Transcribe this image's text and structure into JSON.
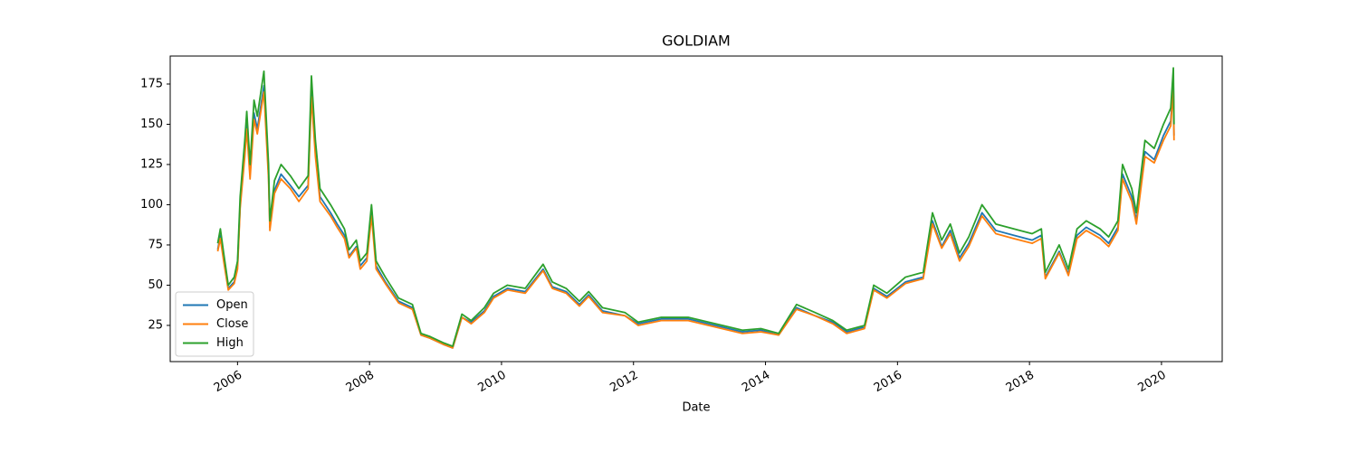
{
  "chart_data": {
    "type": "line",
    "title": "GOLDIAM",
    "x_label": "Date",
    "x": [
      2005.7,
      2005.74,
      2005.79,
      2005.86,
      2005.95,
      2006.0,
      2006.04,
      2006.11,
      2006.14,
      2006.19,
      2006.25,
      2006.3,
      2006.4,
      2006.47,
      2006.49,
      2006.56,
      2006.66,
      2006.8,
      2006.93,
      2007.07,
      2007.12,
      2007.18,
      2007.25,
      2007.41,
      2007.51,
      2007.62,
      2007.69,
      2007.8,
      2007.86,
      2007.96,
      2008.03,
      2008.1,
      2008.24,
      2008.44,
      2008.65,
      2008.78,
      2008.92,
      2009.13,
      2009.26,
      2009.4,
      2009.54,
      2009.74,
      2009.88,
      2010.09,
      2010.36,
      2010.63,
      2010.77,
      2010.98,
      2011.18,
      2011.32,
      2011.53,
      2011.87,
      2012.07,
      2012.42,
      2012.83,
      2013.24,
      2013.65,
      2013.93,
      2014.2,
      2014.47,
      2014.75,
      2015.02,
      2015.23,
      2015.5,
      2015.64,
      2015.84,
      2016.12,
      2016.39,
      2016.53,
      2016.67,
      2016.8,
      2016.94,
      2017.08,
      2017.28,
      2017.49,
      2017.76,
      2018.04,
      2018.18,
      2018.24,
      2018.45,
      2018.59,
      2018.72,
      2018.86,
      2019.07,
      2019.2,
      2019.34,
      2019.41,
      2019.55,
      2019.62,
      2019.75,
      2019.89,
      2020.03,
      2020.14,
      2020.18,
      2020.19
    ],
    "series": [
      {
        "name": "Open",
        "color": "#1f77b4",
        "values": [
          72,
          81,
          67,
          48,
          52,
          62,
          100,
          133,
          150,
          119,
          157,
          147,
          174,
          119,
          86,
          109,
          119,
          112,
          105,
          112,
          171,
          133,
          105,
          95,
          88,
          81,
          68,
          74,
          62,
          67,
          95,
          62,
          52,
          40,
          36,
          19,
          17,
          13,
          11,
          30,
          27,
          34,
          43,
          48,
          46,
          60,
          49,
          46,
          38,
          44,
          34,
          31,
          26,
          29,
          29,
          25,
          21,
          22,
          19,
          36,
          31,
          27,
          21,
          24,
          48,
          43,
          52,
          55,
          90,
          74,
          84,
          67,
          76,
          95,
          84,
          81,
          78,
          81,
          55,
          71,
          57,
          81,
          86,
          81,
          76,
          86,
          119,
          105,
          90,
          133,
          128,
          143,
          152,
          176,
          143
        ]
      },
      {
        "name": "Close",
        "color": "#ff7f0e",
        "values": [
          71,
          79,
          65,
          47,
          51,
          60,
          98,
          130,
          147,
          116,
          153,
          144,
          170,
          116,
          84,
          107,
          116,
          110,
          102,
          110,
          167,
          130,
          102,
          93,
          86,
          79,
          67,
          73,
          60,
          65,
          93,
          60,
          51,
          39,
          35,
          19,
          17,
          13,
          11,
          30,
          26,
          33,
          42,
          47,
          45,
          59,
          48,
          45,
          37,
          43,
          33,
          31,
          25,
          28,
          28,
          24,
          20,
          21,
          19,
          35,
          31,
          26,
          20,
          23,
          47,
          42,
          51,
          54,
          88,
          73,
          82,
          65,
          74,
          93,
          82,
          79,
          76,
          79,
          54,
          70,
          56,
          79,
          84,
          79,
          74,
          84,
          116,
          102,
          88,
          130,
          126,
          140,
          149,
          172,
          140
        ]
      },
      {
        "name": "High",
        "color": "#2ca02c",
        "values": [
          76,
          85,
          70,
          50,
          55,
          65,
          105,
          140,
          158,
          125,
          165,
          155,
          183,
          125,
          90,
          115,
          125,
          118,
          110,
          118,
          180,
          140,
          110,
          100,
          93,
          85,
          72,
          78,
          65,
          70,
          100,
          65,
          55,
          42,
          38,
          20,
          18,
          14,
          12,
          32,
          28,
          36,
          45,
          50,
          48,
          63,
          52,
          48,
          40,
          46,
          36,
          33,
          27,
          30,
          30,
          26,
          22,
          23,
          20,
          38,
          33,
          28,
          22,
          25,
          50,
          45,
          55,
          58,
          95,
          78,
          88,
          70,
          80,
          100,
          88,
          85,
          82,
          85,
          58,
          75,
          60,
          85,
          90,
          85,
          80,
          90,
          125,
          110,
          95,
          140,
          135,
          150,
          160,
          185,
          150
        ]
      }
    ],
    "xlim": [
      2004.98,
      2020.92
    ],
    "xticks": [
      2006,
      2008,
      2010,
      2012,
      2014,
      2016,
      2018,
      2020
    ],
    "ylim": [
      2.5,
      192.4
    ],
    "yticks": [
      25,
      50,
      75,
      100,
      125,
      150,
      175
    ],
    "legend": "lower left"
  }
}
